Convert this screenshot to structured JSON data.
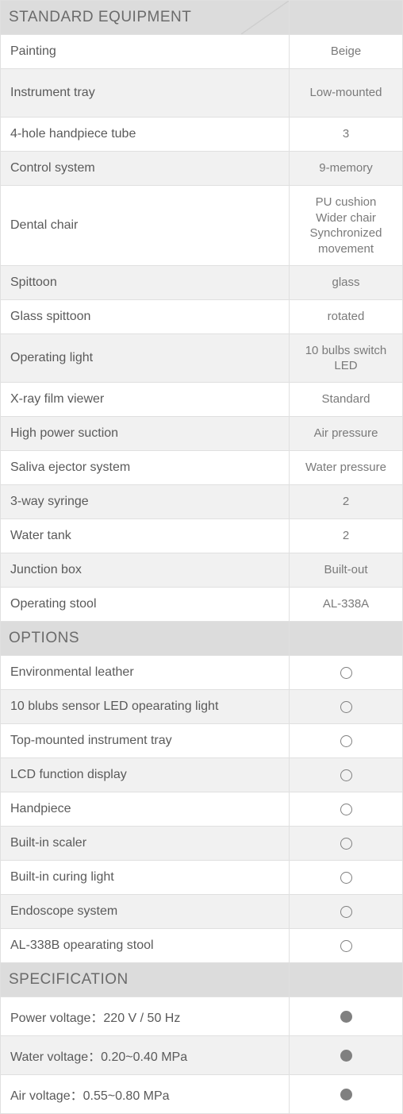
{
  "colors": {
    "header_bg": "#dcdcdc",
    "alt_bg": "#f1f1f1",
    "border": "#e0e0e0",
    "text_label": "#5a5a5a",
    "text_value": "#7a7a7a",
    "text_header": "#6b6b6b",
    "circle": "#808080"
  },
  "sections": {
    "standard": {
      "title": "STANDARD EQUIPMENT",
      "rows": [
        {
          "label": "Painting",
          "value": "Beige"
        },
        {
          "label": "Instrument tray",
          "value": "Low-mounted"
        },
        {
          "label": "4-hole handpiece tube",
          "value": "3"
        },
        {
          "label": "Control system",
          "value": "9-memory"
        },
        {
          "label": "Dental chair",
          "value": "PU cushion\nWider chair\nSynchronized movement"
        },
        {
          "label": "Spittoon",
          "value": "glass"
        },
        {
          "label": "Glass spittoon",
          "value": "rotated"
        },
        {
          "label": "Operating light",
          "value": "10 bulbs switch LED"
        },
        {
          "label": "X-ray film viewer",
          "value": "Standard"
        },
        {
          "label": "High power suction",
          "value": "Air pressure"
        },
        {
          "label": "Saliva ejector system",
          "value": "Water pressure"
        },
        {
          "label": "3-way syringe",
          "value": "2"
        },
        {
          "label": "Water tank",
          "value": "2"
        },
        {
          "label": "Junction box",
          "value": "Built-out"
        },
        {
          "label": "Operating stool",
          "value": "AL-338A"
        }
      ]
    },
    "options": {
      "title": "OPTIONS",
      "rows": [
        {
          "label": "Environmental leather"
        },
        {
          "label": "10 blubs sensor LED opearating light"
        },
        {
          "label": "Top-mounted instrument tray"
        },
        {
          "label": "LCD function display"
        },
        {
          "label": "Handpiece"
        },
        {
          "label": "Built-in scaler"
        },
        {
          "label": "Built-in curing light"
        },
        {
          "label": "Endoscope system"
        },
        {
          "label": "AL-338B opearating stool"
        }
      ]
    },
    "specification": {
      "title": "SPECIFICATION",
      "rows": [
        {
          "label": "Power voltage：220 V / 50 Hz"
        },
        {
          "label": "Water voltage：0.20~0.40 MPa"
        },
        {
          "label": "Air voltage：0.55~0.80 MPa"
        }
      ]
    }
  }
}
